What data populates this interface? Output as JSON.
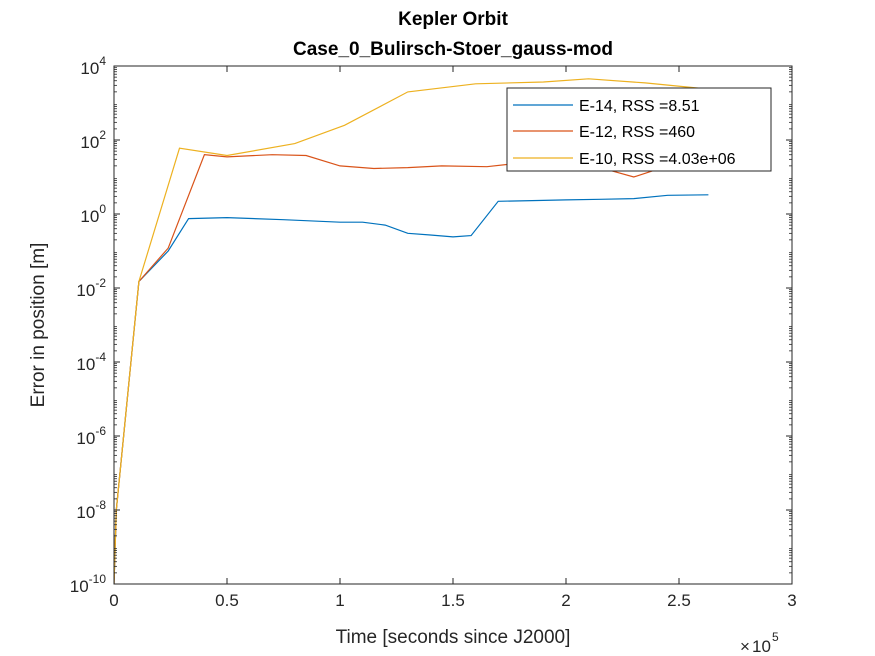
{
  "chart_data": {
    "type": "line",
    "title": "Kepler Orbit",
    "subtitle": "Case_0_Bulirsch-Stoer_gauss-mod",
    "xlabel": "Time [seconds since J2000]",
    "ylabel": "Error in position [m]",
    "x_exponent_label": "10",
    "x_exponent": "5",
    "x_multiplier_prefix": "×",
    "xlim": [
      0,
      300000
    ],
    "ylim": [
      1e-10,
      10000
    ],
    "yscale": "log",
    "grid": false,
    "legend_position": "top-right",
    "x_ticks": [
      {
        "value": 0,
        "label": "0"
      },
      {
        "value": 50000,
        "label": "0.5"
      },
      {
        "value": 100000,
        "label": "1"
      },
      {
        "value": 150000,
        "label": "1.5"
      },
      {
        "value": 200000,
        "label": "2"
      },
      {
        "value": 250000,
        "label": "2.5"
      },
      {
        "value": 300000,
        "label": "3"
      }
    ],
    "y_ticks": [
      {
        "value": 1e-10,
        "base": "10",
        "exp": "-10"
      },
      {
        "value": 1e-08,
        "base": "10",
        "exp": "-8"
      },
      {
        "value": 1e-06,
        "base": "10",
        "exp": "-6"
      },
      {
        "value": 0.0001,
        "base": "10",
        "exp": "-4"
      },
      {
        "value": 0.01,
        "base": "10",
        "exp": "-2"
      },
      {
        "value": 1,
        "base": "10",
        "exp": "0"
      },
      {
        "value": 100,
        "base": "10",
        "exp": "2"
      },
      {
        "value": 10000,
        "base": "10",
        "exp": "4"
      }
    ],
    "series": [
      {
        "name": "E-14, RSS =8.51",
        "color": "#0072BD",
        "x": [
          0,
          1000,
          11000,
          24000,
          33000,
          50000,
          75000,
          100000,
          110000,
          120000,
          130000,
          140000,
          150000,
          158000,
          170000,
          185000,
          200000,
          215000,
          230000,
          245000,
          263000
        ],
        "y": [
          1e-10,
          1e-08,
          0.015,
          0.1,
          0.75,
          0.8,
          0.7,
          0.6,
          0.6,
          0.5,
          0.3,
          0.27,
          0.24,
          0.26,
          2.2,
          2.3,
          2.4,
          2.5,
          2.6,
          3.2,
          3.3
        ]
      },
      {
        "name": "E-12, RSS =460",
        "color": "#D95319",
        "x": [
          0,
          1000,
          11000,
          24000,
          40000,
          50000,
          70000,
          85000,
          100000,
          115000,
          130000,
          145000,
          165000,
          180000,
          200000,
          215000,
          230000,
          245000
        ],
        "y": [
          1e-10,
          1e-08,
          0.015,
          0.12,
          40,
          35,
          40,
          38,
          20,
          17,
          18,
          20,
          19,
          24,
          20,
          18,
          10,
          20
        ]
      },
      {
        "name": "E-10, RSS =4.03e+06",
        "color": "#EDB120",
        "x": [
          0,
          1000,
          11000,
          29000,
          50000,
          80000,
          102000,
          130000,
          160000,
          190000,
          210000,
          235000,
          262000
        ],
        "y": [
          1e-10,
          1e-08,
          0.015,
          60,
          38,
          80,
          250,
          2000,
          3300,
          3700,
          4500,
          3500,
          2400
        ]
      }
    ]
  }
}
